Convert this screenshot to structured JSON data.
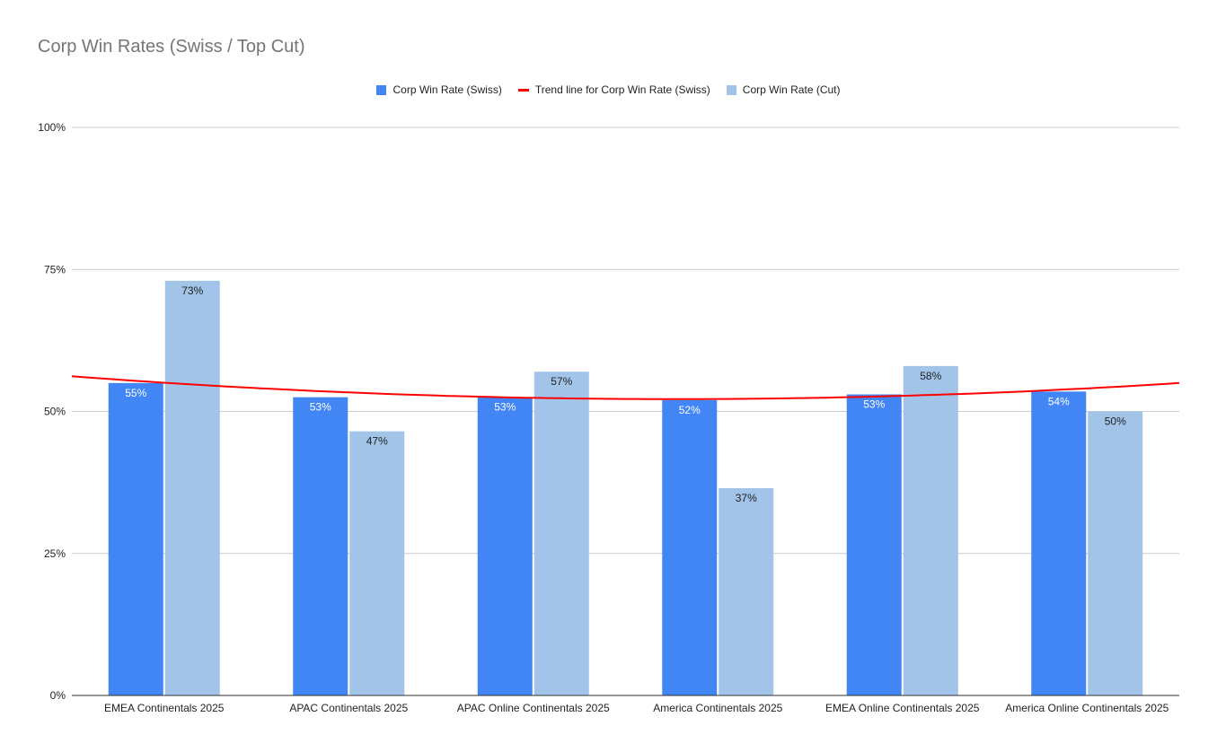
{
  "chart_data": {
    "type": "bar",
    "title": "Corp Win Rates (Swiss / Top Cut)",
    "xlabel": "",
    "ylabel": "",
    "ylim": [
      0,
      100
    ],
    "yticks": [
      "0%",
      "25%",
      "50%",
      "75%",
      "100%"
    ],
    "ytick_values": [
      0,
      25,
      50,
      75,
      100
    ],
    "categories": [
      "EMEA Continentals 2025",
      "APAC Continentals 2025",
      "APAC Online Continentals 2025",
      "America Continentals 2025",
      "EMEA Online Continentals 2025",
      "America Online Continentals 2025"
    ],
    "series": [
      {
        "name": "Corp Win Rate (Swiss)",
        "color": "#4285f4",
        "values": [
          55,
          52.5,
          52.5,
          52,
          53,
          53.5
        ],
        "labels": [
          "55%",
          "53%",
          "53%",
          "52%",
          "53%",
          "54%"
        ],
        "label_color": "#ffffff"
      },
      {
        "name": "Corp Win Rate (Cut)",
        "color": "#a1c4e8",
        "values": [
          73,
          46.5,
          57,
          36.5,
          58,
          50
        ],
        "labels": [
          "73%",
          "47%",
          "57%",
          "37%",
          "58%",
          "50%"
        ],
        "label_color": "#222222"
      }
    ],
    "trendline": {
      "name": "Trend line for Corp Win Rate (Swiss)",
      "color": "#ff0000",
      "type": "polynomial",
      "x": [
        0,
        3.5,
        7
      ],
      "y": [
        56.2,
        52.2,
        55.0
      ]
    },
    "legend_position": "top",
    "grid": true
  }
}
